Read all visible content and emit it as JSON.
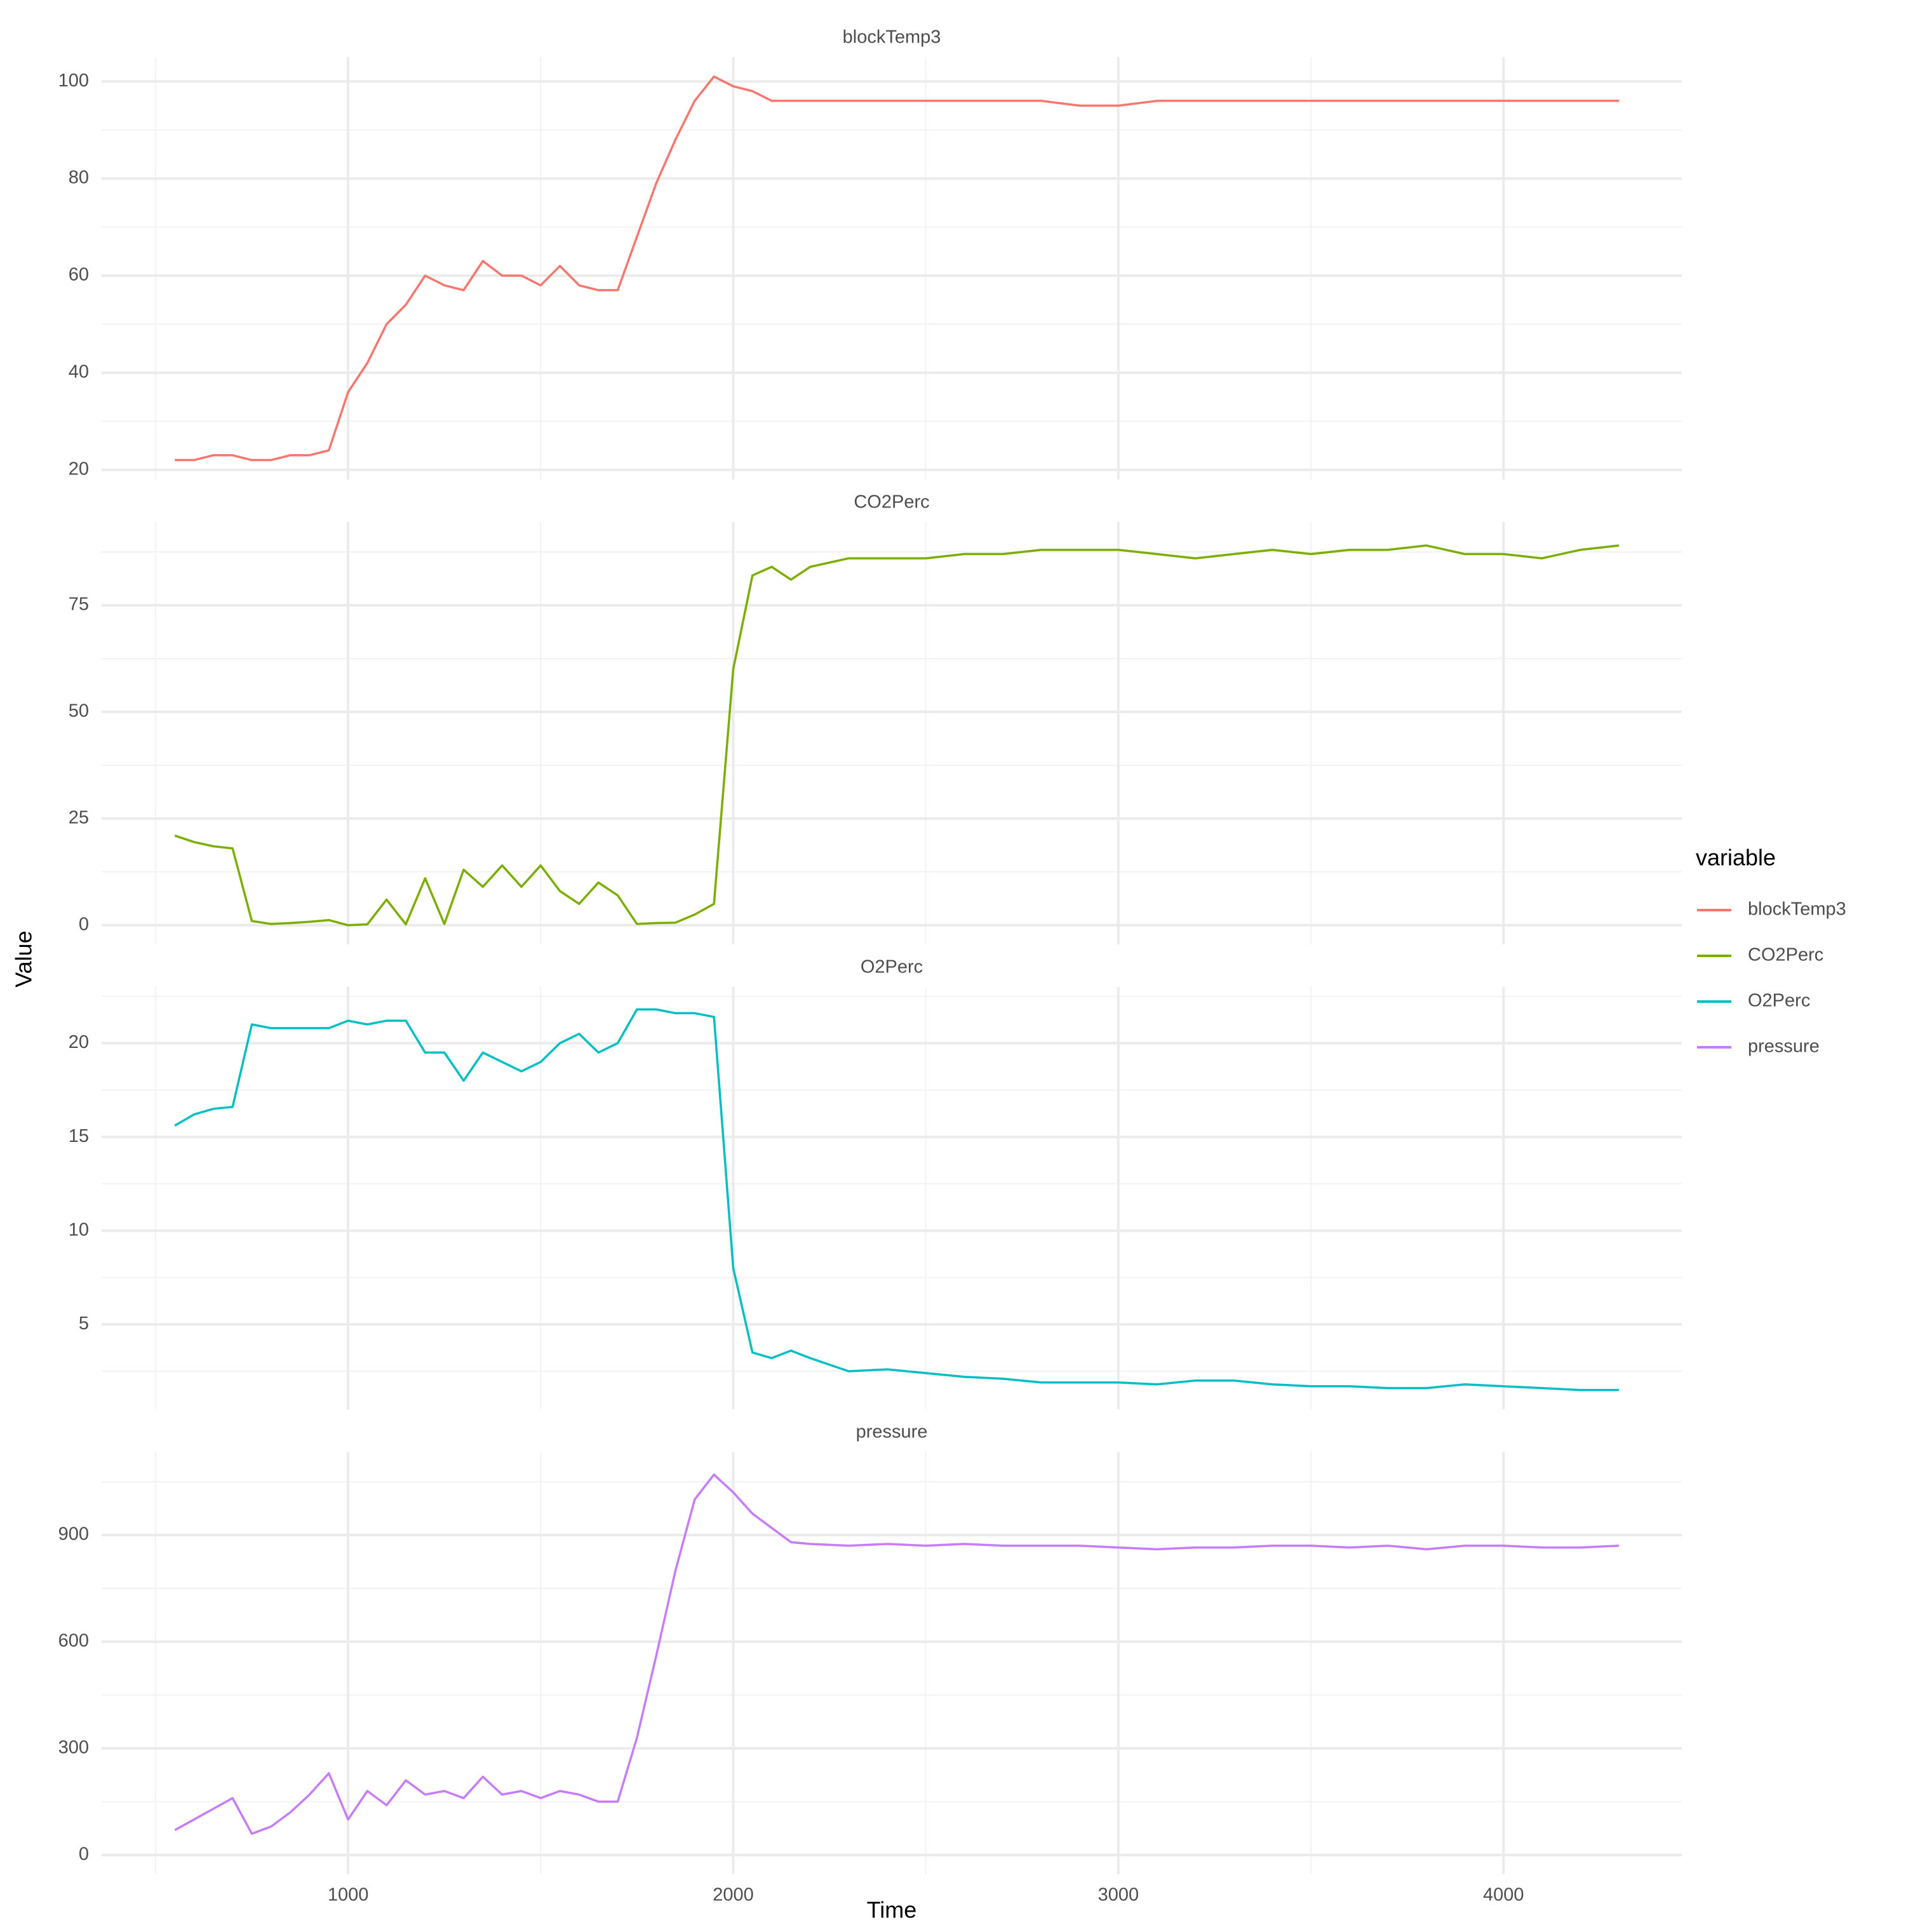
{
  "chart_data": {
    "type": "line",
    "x_label": "Time",
    "y_label": "Value",
    "legend_title": "variable",
    "x": [
      550,
      600,
      650,
      700,
      750,
      800,
      850,
      900,
      950,
      1000,
      1050,
      1100,
      1150,
      1200,
      1250,
      1300,
      1350,
      1400,
      1450,
      1500,
      1550,
      1600,
      1650,
      1700,
      1750,
      1800,
      1850,
      1900,
      1950,
      2000,
      2050,
      2100,
      2150,
      2200,
      2300,
      2400,
      2500,
      2600,
      2700,
      2800,
      2900,
      3000,
      3100,
      3200,
      3300,
      3400,
      3500,
      3600,
      3700,
      3800,
      3900,
      4000,
      4100,
      4200,
      4300
    ],
    "xlim": [
      360,
      4463
    ],
    "xticks": [
      1000,
      2000,
      3000,
      4000
    ],
    "grid": true,
    "series": [
      {
        "name": "blockTemp3",
        "color": "#f8766d",
        "ylim": [
          18,
          105
        ],
        "yticks": [
          20,
          40,
          60,
          80,
          100
        ],
        "values": [
          22,
          22,
          23,
          23,
          22,
          22,
          23,
          23,
          24,
          36,
          42,
          50,
          54,
          60,
          58,
          57,
          63,
          60,
          60,
          58,
          62,
          58,
          57,
          57,
          68,
          79,
          88,
          96,
          101,
          99,
          98,
          96,
          96,
          96,
          96,
          96,
          96,
          96,
          96,
          96,
          95,
          95,
          96,
          96,
          96,
          96,
          96,
          96,
          96,
          96,
          96,
          96,
          96,
          96,
          96
        ]
      },
      {
        "name": "CO2Perc",
        "color": "#7cae00",
        "ylim": [
          -4.5,
          94.5
        ],
        "yticks": [
          0,
          25,
          50,
          75
        ],
        "values": [
          21,
          19.5,
          18.5,
          18,
          1,
          0.3,
          0.5,
          0.8,
          1.2,
          0,
          0.2,
          6,
          0.2,
          11,
          0.3,
          13,
          9,
          14,
          9,
          14,
          8,
          5,
          10,
          7,
          0.3,
          0.5,
          0.6,
          2.5,
          5,
          60,
          82,
          84,
          81,
          84,
          86,
          86,
          86,
          87,
          87,
          88,
          88,
          88,
          87,
          86,
          87,
          88,
          87,
          88,
          88,
          89,
          87,
          87,
          86,
          88,
          89
        ]
      },
      {
        "name": "O2Perc",
        "color": "#00bfc4",
        "ylim": [
          0.47,
          23
        ],
        "yticks": [
          5,
          10,
          15,
          20
        ],
        "values": [
          15.6,
          16.2,
          16.5,
          16.6,
          21,
          20.8,
          20.8,
          20.8,
          20.8,
          21.2,
          21,
          21.2,
          21.2,
          19.5,
          19.5,
          18,
          19.5,
          19,
          18.5,
          19,
          20,
          20.5,
          19.5,
          20,
          21.8,
          21.8,
          21.6,
          21.6,
          21.4,
          8,
          3.5,
          3.2,
          3.6,
          3.2,
          2.5,
          2.6,
          2.4,
          2.2,
          2.1,
          1.9,
          1.9,
          1.9,
          1.8,
          2,
          2,
          1.8,
          1.7,
          1.7,
          1.6,
          1.6,
          1.8,
          1.7,
          1.6,
          1.5,
          1.5
        ]
      },
      {
        "name": "pressure",
        "color": "#c77cff",
        "ylim": [
          -54,
          1134
        ],
        "yticks": [
          0,
          300,
          600,
          900
        ],
        "values": [
          70,
          100,
          130,
          160,
          60,
          80,
          120,
          170,
          230,
          100,
          180,
          140,
          210,
          170,
          180,
          160,
          220,
          170,
          180,
          160,
          180,
          170,
          150,
          150,
          330,
          560,
          800,
          1000,
          1070,
          1020,
          960,
          920,
          880,
          875,
          870,
          875,
          870,
          875,
          870,
          870,
          870,
          865,
          860,
          865,
          865,
          870,
          870,
          865,
          870,
          860,
          870,
          870,
          865,
          865,
          870
        ]
      }
    ]
  }
}
